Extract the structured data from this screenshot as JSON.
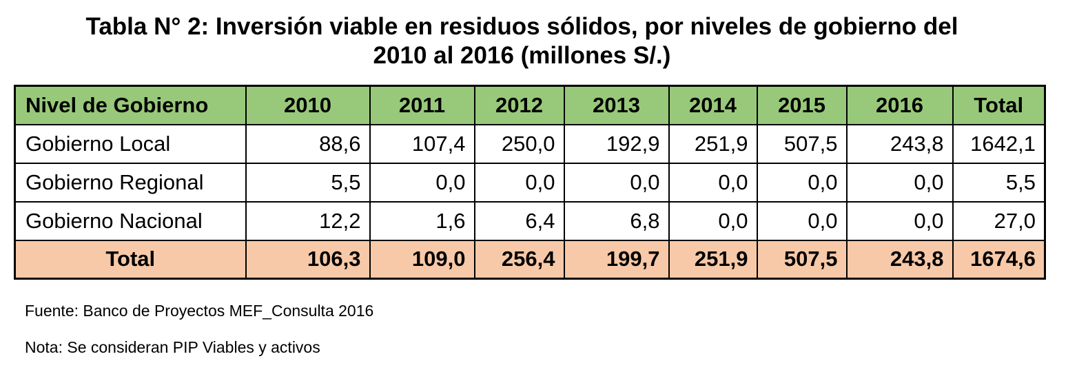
{
  "title": {
    "line1": "Tabla N° 2: Inversión viable en residuos sólidos, por niveles de gobierno del",
    "line2": "2010 al 2016 (millones S/.)"
  },
  "table": {
    "header": [
      "Nivel de Gobierno",
      "2010",
      "2011",
      "2012",
      "2013",
      "2014",
      "2015",
      "2016",
      "Total"
    ],
    "rows": [
      [
        "Gobierno Local",
        "88,6",
        "107,4",
        "250,0",
        "192,9",
        "251,9",
        "507,5",
        "243,8",
        "1642,1"
      ],
      [
        "Gobierno Regional",
        "5,5",
        "0,0",
        "0,0",
        "0,0",
        "0,0",
        "0,0",
        "0,0",
        "5,5"
      ],
      [
        "Gobierno Nacional",
        "12,2",
        "1,6",
        "6,4",
        "6,8",
        "0,0",
        "0,0",
        "0,0",
        "27,0"
      ]
    ],
    "total_row": [
      "Total",
      "106,3",
      "109,0",
      "256,4",
      "199,7",
      "251,9",
      "507,5",
      "243,8",
      "1674,6"
    ]
  },
  "notes": {
    "source": "Fuente: Banco de Proyectos MEF_Consulta 2016",
    "nota": "Nota: Se consideran PIP Viables y activos"
  },
  "colors": {
    "header_bg": "#98c97a",
    "total_bg": "#f7c9a8",
    "border": "#000000"
  }
}
